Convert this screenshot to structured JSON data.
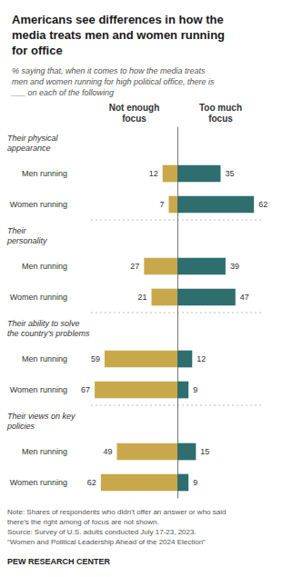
{
  "chart_data": {
    "type": "bar",
    "orientation": "horizontal",
    "title": "Americans see differences in how the\nmedia treats men and women running\nfor office",
    "subtitle": "% saying that, when it comes to how the media treats\nmen and women running for high political office, there is\n___ on each of the following",
    "sections": [
      {
        "label": "Their physical\nappearance",
        "categories": [
          "Men running",
          "Women running"
        ]
      },
      {
        "label": "Their\npersonality",
        "categories": [
          "Men running",
          "Women running"
        ]
      },
      {
        "label": "Their ability to solve\nthe country’s problems",
        "categories": [
          "Men running",
          "Women running"
        ]
      },
      {
        "label": "Their views on key\npolicies",
        "categories": [
          "Men running",
          "Women running"
        ]
      }
    ],
    "series": [
      {
        "name": "Not enough\nfocus",
        "color": "#C9A84C",
        "values": [
          12,
          7,
          27,
          21,
          59,
          67,
          49,
          62
        ]
      },
      {
        "name": "Too much\nfocus",
        "color": "#2E6E6E",
        "values": [
          35,
          62,
          39,
          47,
          12,
          9,
          15,
          9
        ]
      }
    ],
    "xlim": [
      0,
      70
    ],
    "data_labels": true,
    "tick_labels": "y",
    "grid": false,
    "notes": [
      "Note: Shares of respondents who didn’t offer an answer or who said",
      "there’s the right among of focus are not shown.",
      "Source: Survey of U.S. adults conducted July 17-23, 2023.",
      "“Women and Political Leadership Ahead of the 2024 Election”"
    ],
    "source": "PEW RESEARCH CENTER"
  }
}
